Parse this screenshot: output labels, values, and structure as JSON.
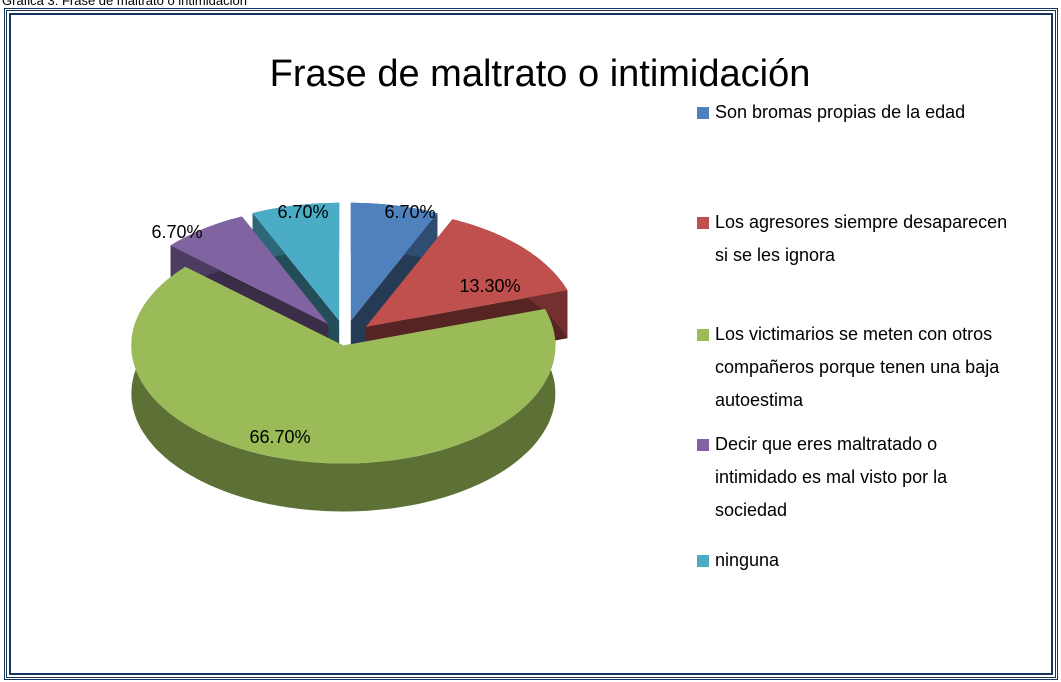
{
  "caption": "Gráfica 3: Frase de maltrato o intimidación",
  "chart_data": {
    "type": "pie",
    "title": "Frase de maltrato o intimidación",
    "categories": [
      "Son bromas propias de la edad",
      "Los agresores siempre desaparecen si se les ignora",
      "Los victimarios se meten con otros compañeros porque tenen una baja autoestima",
      "Decir que eres maltratado o intimidado es mal visto por la sociedad",
      "ninguna"
    ],
    "values": [
      6.7,
      13.3,
      66.7,
      6.7,
      6.7
    ],
    "value_labels": [
      "6.70%",
      "13.30%",
      "66.70%",
      "6.70%",
      "6.70%"
    ],
    "colors": [
      "#4f81bd",
      "#c0504d",
      "#9bbb59",
      "#8064a2",
      "#4bacc6"
    ],
    "legend": "right"
  }
}
